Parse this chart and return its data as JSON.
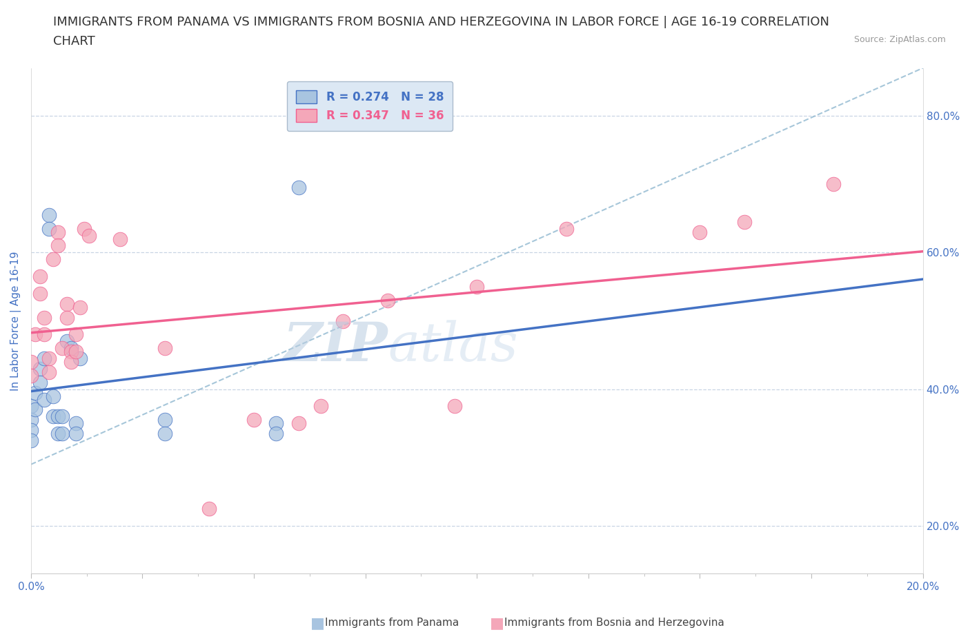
{
  "title_line1": "IMMIGRANTS FROM PANAMA VS IMMIGRANTS FROM BOSNIA AND HERZEGOVINA IN LABOR FORCE | AGE 16-19 CORRELATION",
  "title_line2": "CHART",
  "source": "Source: ZipAtlas.com",
  "ylabel": "In Labor Force | Age 16-19",
  "xlim": [
    0.0,
    0.2
  ],
  "ylim": [
    0.13,
    0.87
  ],
  "yticks": [
    0.2,
    0.4,
    0.6,
    0.8
  ],
  "ytick_labels": [
    "20.0%",
    "40.0%",
    "60.0%",
    "80.0%"
  ],
  "xtick_positions": [
    0.0,
    0.025,
    0.05,
    0.075,
    0.1,
    0.125,
    0.15,
    0.175,
    0.2
  ],
  "xtick_labels": [
    "0.0%",
    "",
    "",
    "",
    "",
    "",
    "",
    "",
    "20.0%"
  ],
  "panama_color": "#a8c4e0",
  "bosnia_color": "#f4a7b9",
  "panama_line_color": "#4472c4",
  "bosnia_line_color": "#f06090",
  "trend_gray_color": "#90b8d0",
  "panama_R": 0.274,
  "panama_N": 28,
  "bosnia_R": 0.347,
  "bosnia_N": 36,
  "panama_scatter_x": [
    0.0,
    0.0,
    0.0,
    0.0,
    0.001,
    0.001,
    0.002,
    0.002,
    0.003,
    0.003,
    0.004,
    0.004,
    0.005,
    0.005,
    0.006,
    0.006,
    0.007,
    0.007,
    0.008,
    0.009,
    0.01,
    0.01,
    0.011,
    0.03,
    0.03,
    0.055,
    0.055,
    0.06
  ],
  "panama_scatter_y": [
    0.375,
    0.355,
    0.34,
    0.325,
    0.395,
    0.37,
    0.43,
    0.41,
    0.445,
    0.385,
    0.655,
    0.635,
    0.39,
    0.36,
    0.36,
    0.335,
    0.36,
    0.335,
    0.47,
    0.46,
    0.35,
    0.335,
    0.445,
    0.355,
    0.335,
    0.35,
    0.335,
    0.695
  ],
  "bosnia_scatter_x": [
    0.0,
    0.0,
    0.001,
    0.002,
    0.002,
    0.003,
    0.003,
    0.004,
    0.004,
    0.005,
    0.006,
    0.006,
    0.007,
    0.008,
    0.008,
    0.009,
    0.009,
    0.01,
    0.01,
    0.011,
    0.012,
    0.013,
    0.02,
    0.03,
    0.04,
    0.05,
    0.06,
    0.065,
    0.07,
    0.08,
    0.095,
    0.1,
    0.12,
    0.15,
    0.16,
    0.18
  ],
  "bosnia_scatter_y": [
    0.44,
    0.42,
    0.48,
    0.565,
    0.54,
    0.505,
    0.48,
    0.445,
    0.425,
    0.59,
    0.63,
    0.61,
    0.46,
    0.525,
    0.505,
    0.455,
    0.44,
    0.48,
    0.455,
    0.52,
    0.635,
    0.625,
    0.62,
    0.46,
    0.225,
    0.355,
    0.35,
    0.375,
    0.5,
    0.53,
    0.375,
    0.55,
    0.635,
    0.63,
    0.645,
    0.7
  ],
  "watermark_zip": "ZIP",
  "watermark_atlas": "atlas",
  "title_fontsize": 13,
  "axis_label_color": "#4472c4",
  "tick_color": "#4472c4",
  "background_color": "#ffffff",
  "grid_color": "#c8d4e4",
  "legend_box_color": "#dce8f4"
}
